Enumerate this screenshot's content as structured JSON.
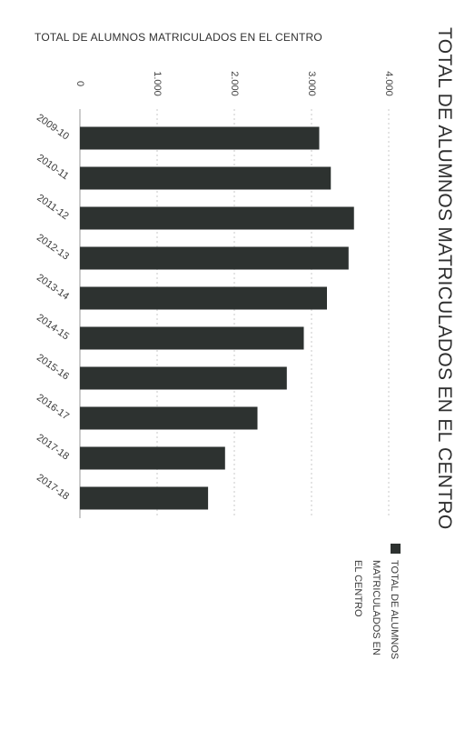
{
  "header": {
    "top_title": "TOTAL DE ALUMNOS MATRICULADOS EN EL CENTRO",
    "main_title": "TOTAL DE ALUMNOS MATRICULADOS EN EL CENTRO"
  },
  "legend": {
    "label": "TOTAL DE ALUMNOS MATRICULADOS EN EL CENTRO"
  },
  "colors": {
    "bar": "#2d3230",
    "axis": "#9a9a9a",
    "grid": "#c8c8c8"
  },
  "chart_data": {
    "type": "bar",
    "orientation": "horizontal",
    "title": "TOTAL DE ALUMNOS MATRICULADOS EN EL CENTRO",
    "categories": [
      "2009-10",
      "2010-11",
      "2011-12",
      "2012-13",
      "2013-14",
      "2014-15",
      "2015-16",
      "2016-17",
      "2017-18",
      "2017-18"
    ],
    "series": [
      {
        "name": "TOTAL DE ALUMNOS MATRICULADOS EN EL CENTRO",
        "values": [
          3100,
          3250,
          3550,
          3480,
          3200,
          2900,
          2680,
          2300,
          1880,
          1660
        ]
      }
    ],
    "xlim": [
      0,
      4000
    ],
    "ticks": [
      0,
      1000,
      2000,
      3000,
      4000
    ],
    "tick_labels": [
      "0",
      "1.000",
      "2.000",
      "3.000",
      "4.000"
    ],
    "grid": true,
    "legend_position": "right"
  }
}
